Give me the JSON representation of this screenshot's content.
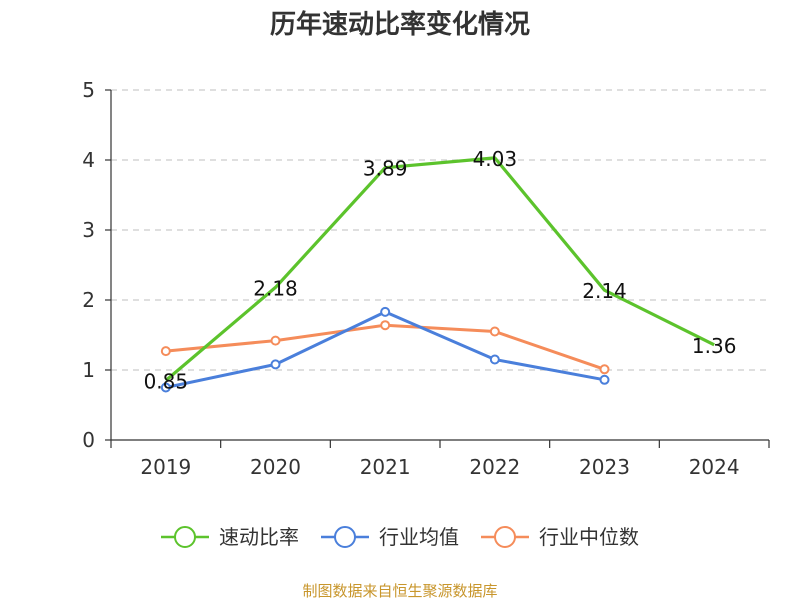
{
  "chart_data": {
    "type": "line",
    "title": "历年速动比率变化情况",
    "categories": [
      "2019",
      "2020",
      "2021",
      "2022",
      "2023",
      "2024"
    ],
    "ylim": [
      0,
      5
    ],
    "yticks": [
      "0",
      "1",
      "2",
      "3",
      "4",
      "5"
    ],
    "grid": "horizontal-dashed",
    "legend_position": "bottom",
    "series": [
      {
        "name": "速动比率",
        "color": "#5cc32c",
        "markers": false,
        "show_labels": true,
        "values": [
          0.85,
          2.18,
          3.89,
          4.03,
          2.14,
          1.36
        ],
        "labels": [
          "0.85",
          "2.18",
          "3.89",
          "4.03",
          "2.14",
          "1.36"
        ]
      },
      {
        "name": "行业均值",
        "color": "#4a7fdb",
        "markers": true,
        "show_labels": false,
        "values": [
          0.75,
          1.08,
          1.83,
          1.15,
          0.86,
          null
        ]
      },
      {
        "name": "行业中位数",
        "color": "#f58c5a",
        "markers": true,
        "show_labels": false,
        "values": [
          1.27,
          1.42,
          1.64,
          1.55,
          1.01,
          null
        ]
      }
    ]
  },
  "source": {
    "text": "制图数据来自恒生聚源数据库",
    "color": "#c8962c"
  }
}
